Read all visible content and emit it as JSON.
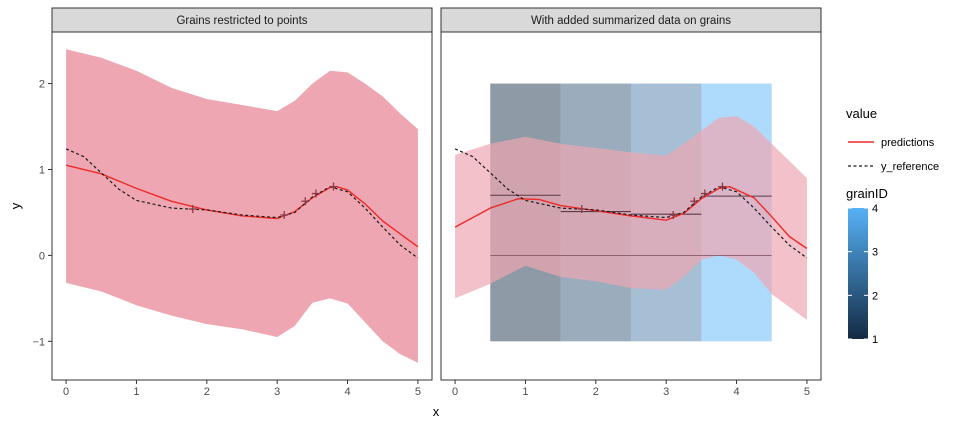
{
  "chart_data": {
    "type": "line",
    "xlabel": "x",
    "ylabel": "y",
    "xlim": [
      -0.2,
      5.2
    ],
    "ylim": [
      -1.45,
      2.6
    ],
    "x_ticks": [
      0,
      1,
      2,
      3,
      4,
      5
    ],
    "y_ticks": [
      -1,
      0,
      1,
      2
    ],
    "x_tick_labels": [
      "0",
      "1",
      "2",
      "3",
      "4",
      "5"
    ],
    "y_tick_labels": [
      "−1",
      "0",
      "1",
      "2"
    ],
    "grid": false,
    "legend_placement": "right",
    "colors": {
      "predictions": "#ee2a2a",
      "band": "#eea7b2",
      "reference": "#1a1a1a",
      "points": "#8b3a4a",
      "strip_bg": "#d9d9d9"
    },
    "panels": [
      {
        "title": "Grains restricted to points",
        "series": [
          {
            "name": "predictions",
            "x": [
              0,
              0.5,
              1,
              1.5,
              2,
              2.5,
              3,
              3.25,
              3.5,
              3.75,
              3.85,
              4,
              4.25,
              4.5,
              4.75,
              5
            ],
            "y": [
              1.05,
              0.95,
              0.78,
              0.63,
              0.53,
              0.46,
              0.43,
              0.51,
              0.67,
              0.79,
              0.8,
              0.76,
              0.6,
              0.4,
              0.25,
              0.1
            ]
          },
          {
            "name": "y_reference",
            "x": [
              0,
              0.25,
              0.5,
              0.75,
              1,
              1.5,
              2,
              2.5,
              3,
              3.25,
              3.5,
              3.75,
              4,
              4.25,
              4.5,
              4.75,
              5
            ],
            "y": [
              1.24,
              1.15,
              0.96,
              0.77,
              0.64,
              0.55,
              0.53,
              0.47,
              0.44,
              0.5,
              0.68,
              0.8,
              0.74,
              0.55,
              0.33,
              0.12,
              -0.03
            ]
          }
        ],
        "band": {
          "x": [
            0,
            0.5,
            1,
            1.5,
            2,
            2.5,
            3,
            3.25,
            3.5,
            3.75,
            4,
            4.25,
            4.5,
            4.75,
            5
          ],
          "upper": [
            2.4,
            2.3,
            2.15,
            1.95,
            1.82,
            1.75,
            1.68,
            1.8,
            2.0,
            2.15,
            2.13,
            2.0,
            1.85,
            1.65,
            1.47
          ],
          "lower": [
            -0.32,
            -0.42,
            -0.58,
            -0.7,
            -0.8,
            -0.86,
            -0.95,
            -0.82,
            -0.55,
            -0.5,
            -0.56,
            -0.78,
            -1.0,
            -1.15,
            -1.25
          ]
        },
        "points": {
          "x": [
            1.8,
            3.1,
            3.4,
            3.55,
            3.8
          ],
          "y": [
            0.54,
            0.47,
            0.63,
            0.72,
            0.8
          ]
        }
      },
      {
        "title": "With added summarized data on grains",
        "series": [
          {
            "name": "predictions",
            "x": [
              0,
              0.5,
              0.9,
              1.2,
              1.5,
              2,
              2.5,
              3,
              3.25,
              3.5,
              3.75,
              3.9,
              4.25,
              4.5,
              4.75,
              5
            ],
            "y": [
              0.33,
              0.55,
              0.66,
              0.65,
              0.58,
              0.52,
              0.46,
              0.41,
              0.49,
              0.66,
              0.78,
              0.8,
              0.67,
              0.45,
              0.22,
              0.08
            ]
          },
          {
            "name": "y_reference",
            "x": [
              0,
              0.25,
              0.5,
              0.75,
              1,
              1.5,
              2,
              2.5,
              3,
              3.25,
              3.5,
              3.75,
              4,
              4.25,
              4.5,
              4.75,
              5
            ],
            "y": [
              1.24,
              1.15,
              0.96,
              0.77,
              0.64,
              0.55,
              0.53,
              0.47,
              0.44,
              0.5,
              0.68,
              0.8,
              0.74,
              0.55,
              0.33,
              0.12,
              -0.03
            ]
          }
        ],
        "band": {
          "x": [
            0,
            0.5,
            1,
            1.5,
            2,
            2.5,
            3,
            3.25,
            3.5,
            3.75,
            4,
            4.25,
            4.5,
            4.75,
            5
          ],
          "upper": [
            1.17,
            1.3,
            1.38,
            1.3,
            1.25,
            1.2,
            1.16,
            1.3,
            1.45,
            1.6,
            1.62,
            1.5,
            1.3,
            1.1,
            0.9
          ],
          "lower": [
            -0.5,
            -0.33,
            -0.12,
            -0.25,
            -0.3,
            -0.38,
            -0.4,
            -0.25,
            -0.05,
            0.0,
            -0.05,
            -0.2,
            -0.45,
            -0.6,
            -0.75
          ]
        },
        "points": {
          "x": [
            1.8,
            3.1,
            3.4,
            3.55,
            3.8
          ],
          "y": [
            0.54,
            0.47,
            0.63,
            0.72,
            0.8
          ]
        },
        "grains": [
          {
            "xmin": 0.5,
            "xmax": 1.5,
            "ymin": -1.0,
            "ymax": 2.0,
            "grainID": 1,
            "color": "#132b43",
            "mean_line": 0.7
          },
          {
            "xmin": 1.5,
            "xmax": 2.5,
            "ymin": -1.0,
            "ymax": 2.0,
            "grainID": 2,
            "color": "#2d5175",
            "mean_line": 0.51
          },
          {
            "xmin": 2.5,
            "xmax": 3.5,
            "ymin": -1.0,
            "ymax": 2.0,
            "grainID": 3,
            "color": "#4579a8",
            "mean_line": 0.48
          },
          {
            "xmin": 3.5,
            "xmax": 4.5,
            "ymin": -1.0,
            "ymax": 2.0,
            "grainID": 4,
            "color": "#56b1f7",
            "mean_line": 0.69
          }
        ],
        "zero_line": 0
      }
    ],
    "legend": {
      "value": {
        "title": "value",
        "entries": [
          {
            "label": "predictions",
            "style": "solid",
            "color": "#ee2a2a"
          },
          {
            "label": "y_reference",
            "style": "dashed",
            "color": "#1a1a1a"
          }
        ]
      },
      "grainID": {
        "title": "grainID",
        "range": [
          1,
          4
        ],
        "ticks": [
          1,
          2,
          3,
          4
        ],
        "tick_labels": [
          "1",
          "2",
          "3",
          "4"
        ],
        "low_color": "#132b43",
        "high_color": "#56b1f7"
      }
    }
  }
}
